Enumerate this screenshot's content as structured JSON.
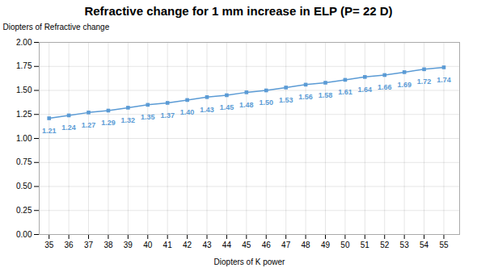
{
  "chart_data": {
    "type": "line",
    "title": "Refractive change for 1 mm increase in ELP (P= 22 D)",
    "xlabel": "Diopters of K power",
    "ylabel": "Diopters of Refractive change",
    "x": [
      35,
      36,
      37,
      38,
      39,
      40,
      41,
      42,
      43,
      44,
      45,
      46,
      47,
      48,
      49,
      50,
      51,
      52,
      53,
      54,
      55
    ],
    "values": [
      1.21,
      1.24,
      1.27,
      1.29,
      1.32,
      1.35,
      1.37,
      1.4,
      1.43,
      1.45,
      1.48,
      1.5,
      1.53,
      1.56,
      1.58,
      1.61,
      1.64,
      1.66,
      1.69,
      1.72,
      1.74
    ],
    "value_labels": [
      "1.21",
      "1.24",
      "1.27",
      "1.29",
      "1.32",
      "1.35",
      "1.37",
      "1.40",
      "1.43",
      "1.45",
      "1.48",
      "1.50",
      "1.53",
      "1.56",
      "1.58",
      "1.61",
      "1.64",
      "1.66",
      "1.69",
      "1.72",
      "1.74"
    ],
    "color": "#5B9BD5",
    "marker": "square",
    "line_style": "solid",
    "data_labels": true,
    "grid": true,
    "xlim": [
      34.5,
      55.8
    ],
    "xticks": [
      35,
      36,
      37,
      38,
      39,
      40,
      41,
      42,
      43,
      44,
      45,
      46,
      47,
      48,
      49,
      50,
      51,
      52,
      53,
      54,
      55
    ],
    "ylim": [
      0,
      2
    ],
    "yticks": [
      {
        "value": 0,
        "label": "0.00"
      },
      {
        "value": 0.25,
        "label": "0.25"
      },
      {
        "value": 0.5,
        "label": "0.50"
      },
      {
        "value": 0.75,
        "label": "0.75"
      },
      {
        "value": 1,
        "label": "1.00"
      },
      {
        "value": 1.25,
        "label": "1.25"
      },
      {
        "value": 1.5,
        "label": "1.50"
      },
      {
        "value": 1.75,
        "label": "1.75"
      },
      {
        "value": 2,
        "label": "2.00"
      }
    ]
  }
}
